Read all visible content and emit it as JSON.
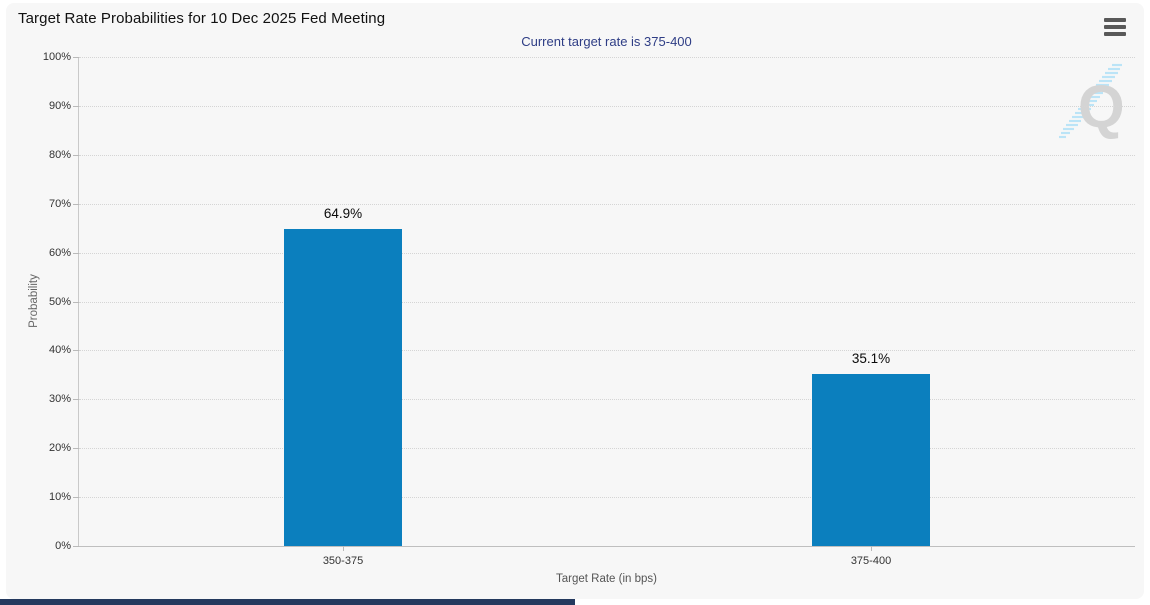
{
  "header": {
    "menu_icon": "hamburger-icon"
  },
  "watermark": {
    "letter": "Q"
  },
  "chart_data": {
    "type": "bar",
    "title": "Target Rate Probabilities for 10 Dec 2025 Fed Meeting",
    "subtitle": "Current target rate is 375-400",
    "categories": [
      "350-375",
      "375-400"
    ],
    "values": [
      64.9,
      35.1
    ],
    "data_labels": [
      "64.9%",
      "35.1%"
    ],
    "xlabel": "Target Rate (in bps)",
    "ylabel": "Probability",
    "ylim": [
      0,
      100
    ],
    "ytick_step": 10,
    "ytick_labels": [
      "0%",
      "10%",
      "20%",
      "30%",
      "40%",
      "50%",
      "60%",
      "70%",
      "80%",
      "90%",
      "100%"
    ],
    "grid": "dotted-horizontal",
    "legend": "none",
    "colors": {
      "bar": "#0b7fbe",
      "subtitle": "#2e3d85",
      "plot_background": "#f7f7f7",
      "gridline": "#d5d5d5",
      "watermark_gray": "#d4d4d4",
      "watermark_blue": "#b5e2f7"
    }
  }
}
